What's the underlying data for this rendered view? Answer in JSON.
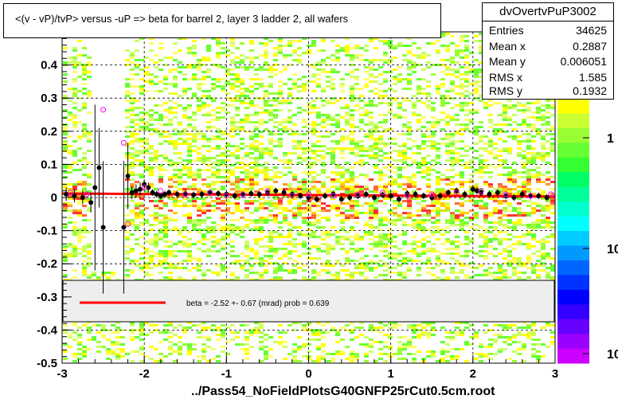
{
  "chart_data": {
    "type": "scatter",
    "title": "<(v - vP)/tvP> versus  -uP => beta for barrel 2, layer 3 ladder 2, all wafers",
    "xlabel": "../Pass54_NoFieldPlotsG40GNFP25rCut0.5cm.root",
    "ylabel": "",
    "xlim": [
      -3,
      3
    ],
    "ylim": [
      -0.5,
      0.5
    ],
    "x_ticks": [
      "-3",
      "-2",
      "-1",
      "0",
      "1",
      "2",
      "3"
    ],
    "y_ticks": [
      "-0.5",
      "-0.4",
      "-0.3",
      "-0.2",
      "-0.1",
      "0",
      "0.1",
      "0.2",
      "0.3",
      "0.4",
      "0.5"
    ],
    "grid": true,
    "colorbar_ticks": [
      "1",
      "10",
      "10"
    ],
    "series": [
      {
        "type": "profile_black",
        "color": "#000000",
        "x": [
          -2.95,
          -2.85,
          -2.75,
          -2.65,
          -2.6,
          -2.55,
          -2.5,
          -2.25,
          -2.2,
          -2.15,
          -2.1,
          -2.05,
          -2.0,
          -1.95,
          -1.9,
          -1.85,
          -1.8,
          -1.75,
          -1.7,
          -1.6,
          -1.5,
          -1.4,
          -1.3,
          -1.2,
          -1.1,
          -1.0,
          -0.9,
          -0.8,
          -0.7,
          -0.6,
          -0.5,
          -0.4,
          -0.3,
          -0.2,
          -0.1,
          0.0,
          0.1,
          0.2,
          0.3,
          0.4,
          0.5,
          0.6,
          0.7,
          0.8,
          0.9,
          1.0,
          1.1,
          1.2,
          1.3,
          1.4,
          1.5,
          1.6,
          1.7,
          1.8,
          1.9,
          2.0,
          2.05,
          2.1,
          2.2,
          2.3,
          2.4,
          2.5,
          2.6,
          2.7,
          2.8,
          2.9
        ],
        "y": [
          0.01,
          0.005,
          0.0,
          -0.015,
          0.03,
          0.09,
          -0.09,
          -0.09,
          0.065,
          0.015,
          0.02,
          0.025,
          0.04,
          0.03,
          0.015,
          0.01,
          0.005,
          0.01,
          0.015,
          0.01,
          0.012,
          0.008,
          0.01,
          0.015,
          0.012,
          0.01,
          0.005,
          0.008,
          0.012,
          0.01,
          0.015,
          0.02,
          0.015,
          0.01,
          0.005,
          0.0,
          -0.005,
          0.005,
          0.01,
          -0.005,
          0.0,
          0.005,
          0.01,
          0.0,
          0.008,
          0.005,
          -0.005,
          0.012,
          0.01,
          0.005,
          0.0,
          0.005,
          0.015,
          0.02,
          0.01,
          0.025,
          0.02,
          0.015,
          0.01,
          0.015,
          0.005,
          0.0,
          0.01,
          0.005,
          0.005,
          0.0
        ],
        "yerr": [
          0.02,
          0.02,
          0.02,
          0.03,
          0.25,
          0.12,
          0.2,
          0.2,
          0.1,
          0.02,
          0.02,
          0.02,
          0.015,
          0.015,
          0.01,
          0.01,
          0.01,
          0.01,
          0.01,
          0.01,
          0.01,
          0.01,
          0.01,
          0.01,
          0.01,
          0.01,
          0.01,
          0.01,
          0.01,
          0.01,
          0.01,
          0.01,
          0.01,
          0.01,
          0.01,
          0.01,
          0.01,
          0.01,
          0.01,
          0.01,
          0.01,
          0.01,
          0.01,
          0.01,
          0.01,
          0.01,
          0.01,
          0.01,
          0.01,
          0.01,
          0.01,
          0.01,
          0.01,
          0.01,
          0.01,
          0.01,
          0.01,
          0.01,
          0.01,
          0.01,
          0.01,
          0.01,
          0.01,
          0.01,
          0.01,
          0.01
        ]
      },
      {
        "type": "profile_magenta",
        "color": "#ff00ff",
        "x": [
          -2.9,
          -2.7,
          -2.5,
          -2.25,
          -2.2,
          -2.0,
          -1.8,
          -1.5,
          -1.2,
          -1.0,
          -0.8,
          -0.5,
          -0.2,
          0.0,
          0.3,
          0.6,
          0.9,
          1.2,
          1.5,
          1.8,
          2.1,
          2.4,
          2.7,
          2.95
        ],
        "y": [
          0.015,
          0.01,
          0.265,
          0.165,
          -0.08,
          0.03,
          0.02,
          0.01,
          0.015,
          0.005,
          0.01,
          0.02,
          0.005,
          0.01,
          0.005,
          0.01,
          0.015,
          0.005,
          0.01,
          0.015,
          0.02,
          0.01,
          0.005,
          0.01
        ]
      }
    ],
    "fit_line": {
      "color": "#ff0000",
      "x": [
        -3,
        3
      ],
      "y": [
        0.012,
        0.003
      ]
    },
    "fit_label": "beta =   -2.52 +-  0.67 (mrad) prob = 0.639"
  },
  "stats": {
    "name": "dvOvertvPuP3002",
    "rows": [
      {
        "label": "Entries",
        "value": "34625"
      },
      {
        "label": "Mean x",
        "value": "0.2887"
      },
      {
        "label": "Mean y",
        "value": "0.006051"
      },
      {
        "label": "RMS x",
        "value": "1.585"
      },
      {
        "label": "RMS y",
        "value": "0.1932"
      }
    ]
  }
}
